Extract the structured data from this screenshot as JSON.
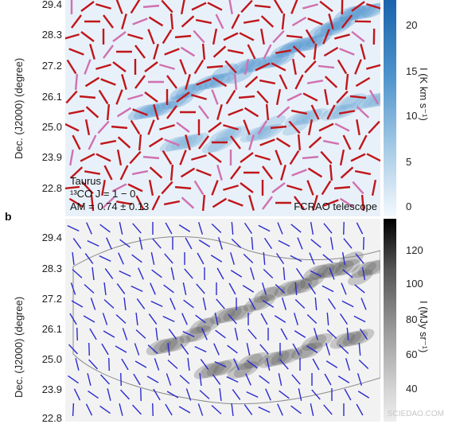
{
  "panel_a": {
    "yticks": [
      "29.4",
      "28.3",
      "27.2",
      "26.1",
      "25.0",
      "23.9",
      "22.8"
    ],
    "ylabel": "Dec. (J2000) (degree)",
    "colorbar_ticks": [
      "20",
      "15",
      "10",
      "5",
      "0"
    ],
    "colorbar_label": "I (K km s⁻¹)",
    "region": "Taurus",
    "line": "¹³CO J = 1 − 0",
    "am": "AM = 0.74 ± 0.13",
    "telescope": "FCRAO telescope"
  },
  "panel_b": {
    "label": "b",
    "yticks": [
      "29.4",
      "28.3",
      "27.2",
      "26.1",
      "25.0",
      "23.9",
      "22.8"
    ],
    "ylabel": "Dec. (J2000) (degree)",
    "colorbar_ticks": [
      "120",
      "100",
      "80",
      "60",
      "40"
    ],
    "colorbar_label": "I (MJy sr⁻¹)"
  },
  "colors": {
    "blue_map": "#1f6fb4",
    "red_vec": "#c0161b",
    "pink_vec": "#d070b0",
    "blue_vec": "#2a2ad0"
  },
  "watermark": "SCIEDAO.COM"
}
